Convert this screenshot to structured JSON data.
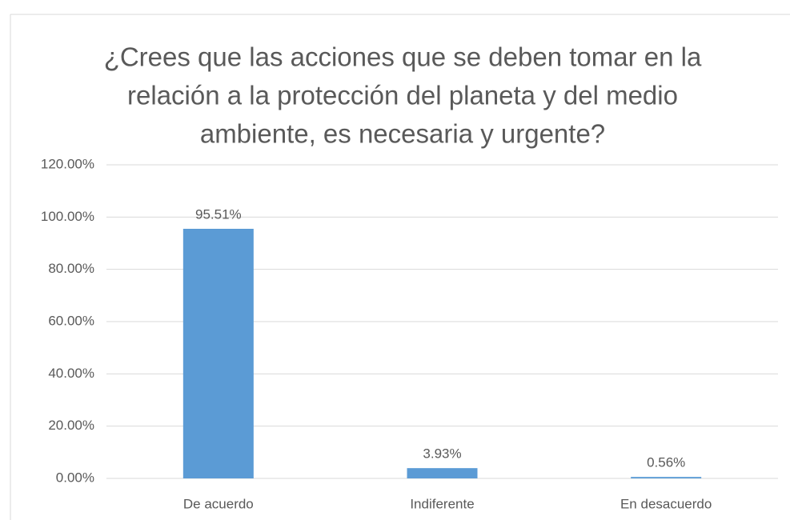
{
  "chart_data": {
    "type": "bar",
    "title": [
      "¿Crees que las acciones que se deben tomar en la",
      "relación a la protección del planeta y del medio",
      "ambiente, es necesaria y urgente?"
    ],
    "categories": [
      "De acuerdo",
      "Indiferente",
      "En desacuerdo"
    ],
    "values": [
      95.51,
      3.93,
      0.56
    ],
    "value_labels": [
      "95.51%",
      "3.93%",
      "0.56%"
    ],
    "color": "#5b9bd5",
    "ylim": [
      0,
      120
    ],
    "yticks": [
      {
        "value": 0,
        "label": "0.00%"
      },
      {
        "value": 20,
        "label": "20.00%"
      },
      {
        "value": 40,
        "label": "40.00%"
      },
      {
        "value": 60,
        "label": "60.00%"
      },
      {
        "value": 80,
        "label": "80.00%"
      },
      {
        "value": 100,
        "label": "100.00%"
      },
      {
        "value": 120,
        "label": "120.00%"
      }
    ],
    "grid": true
  }
}
